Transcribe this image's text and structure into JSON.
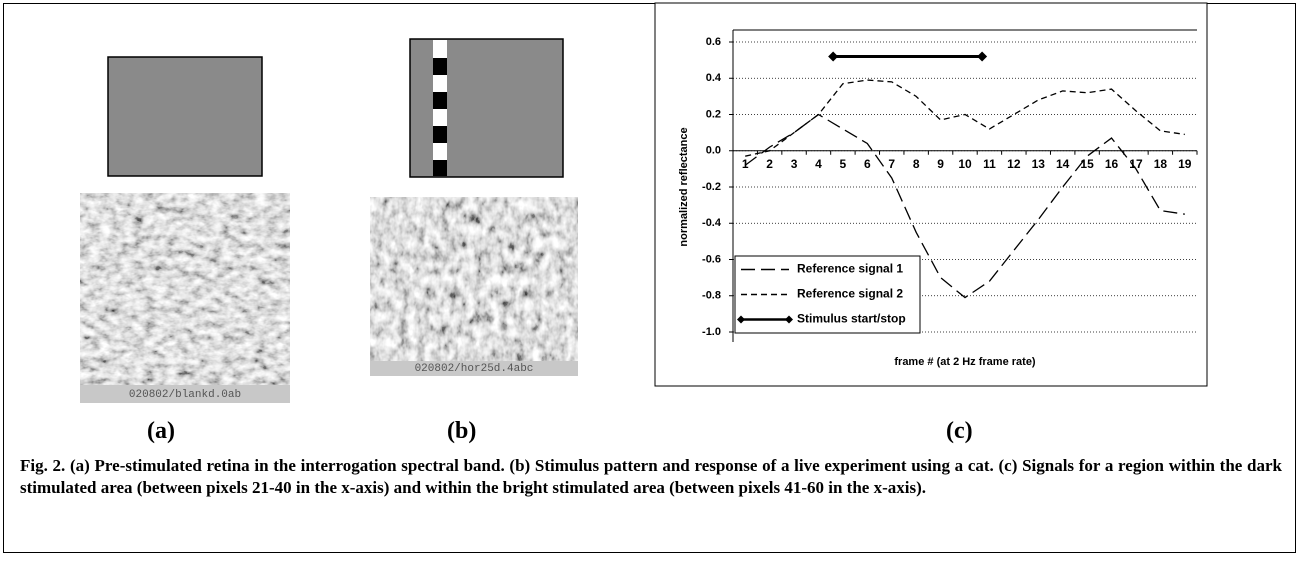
{
  "panels": {
    "a": {
      "label": "(a)",
      "image_caption": "020802/blankd.0ab"
    },
    "b": {
      "label": "(b)",
      "image_caption": "020802/hor25d.4abc"
    },
    "c": {
      "label": "(c)"
    }
  },
  "caption": "Fig. 2. (a)  Pre-stimulated retina in the interrogation spectral band.  (b) Stimulus pattern and response of a live experiment using a cat.  (c) Signals for a region within the dark stimulated area (between pixels 21-40 in the x-axis) and within the bright stimulated area (between pixels 41-60 in the x-axis).",
  "chart_data": {
    "type": "line",
    "x_label": "frame # (at 2 Hz frame rate)",
    "y_label": "normalized reflectance",
    "x": [
      1,
      2,
      3,
      4,
      5,
      6,
      7,
      8,
      9,
      10,
      11,
      12,
      13,
      14,
      15,
      16,
      17,
      18,
      19
    ],
    "xlim": [
      0.5,
      19.5
    ],
    "xticks": [
      1,
      2,
      3,
      4,
      5,
      6,
      7,
      8,
      9,
      10,
      11,
      12,
      13,
      14,
      15,
      16,
      17,
      18,
      19
    ],
    "ylim": [
      -1.0,
      0.6
    ],
    "yticks": [
      0.6,
      0.4,
      0.2,
      {
        "value": 0,
        "label": "0.0"
      },
      -0.2,
      -0.4,
      -0.6,
      -0.8,
      {
        "value": -1.0,
        "label": "-1.0"
      }
    ],
    "grid": true,
    "legend": "lower-left",
    "series": [
      {
        "name": "Reference signal 1",
        "color": "#000000",
        "dash": "long",
        "values": [
          -0.08,
          0.02,
          0.1,
          0.2,
          0.12,
          0.04,
          -0.15,
          -0.45,
          -0.7,
          -0.81,
          -0.72,
          -0.55,
          -0.38,
          -0.2,
          -0.03,
          0.07,
          -0.1,
          -0.33,
          -0.35
        ]
      },
      {
        "name": "Reference signal 2",
        "color": "#000000",
        "dash": "short",
        "values": [
          -0.03,
          0.0,
          0.1,
          0.2,
          0.37,
          0.39,
          0.38,
          0.3,
          0.17,
          0.2,
          0.12,
          0.2,
          0.28,
          0.33,
          0.32,
          0.34,
          0.22,
          0.11,
          0.09
        ]
      },
      {
        "name": "Stimulus start/stop",
        "color": "#000000",
        "dash": "solid",
        "marker": "diamond",
        "x": [
          4.6,
          10.7
        ],
        "values": [
          0.52,
          0.52
        ]
      }
    ]
  }
}
